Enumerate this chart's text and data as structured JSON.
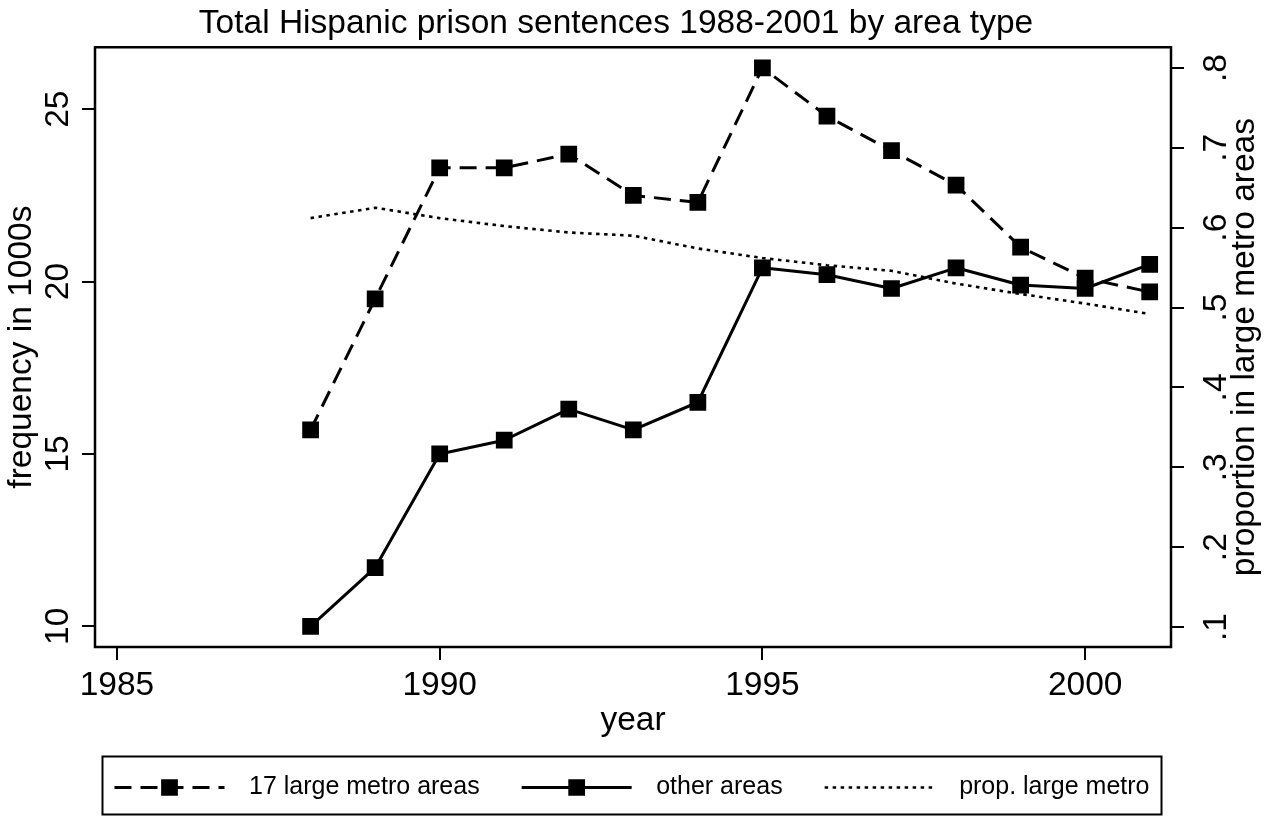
{
  "chart_data": {
    "type": "line",
    "title": "Total Hispanic prison sentences 1988-2001 by area type",
    "xlabel": "year",
    "ylabel": "frequency in 1000s",
    "y2label": "proportion in large metro areas",
    "x": [
      1988,
      1989,
      1990,
      1991,
      1992,
      1993,
      1994,
      1995,
      1996,
      1997,
      1998,
      1999,
      2000,
      2001
    ],
    "series": [
      {
        "name": "17 large metro areas",
        "color": "#000000",
        "line_style": "dashed",
        "marker": "square",
        "values": [
          15.7,
          19.5,
          23.3,
          23.3,
          23.7,
          22.5,
          22.3,
          26.2,
          24.8,
          23.8,
          22.8,
          21.0,
          20.1,
          19.7
        ]
      },
      {
        "name": "other areas",
        "color": "#000000",
        "line_style": "solid",
        "marker": "square",
        "values": [
          10.0,
          11.7,
          15.0,
          15.4,
          16.3,
          15.7,
          16.5,
          20.4,
          20.2,
          19.8,
          20.4,
          19.9,
          19.8,
          20.5
        ]
      },
      {
        "name": "prop. large metro",
        "color": "#000000",
        "line_style": "dotted",
        "marker": "none",
        "axis": "y2",
        "values": [
          0.612,
          0.625,
          0.612,
          0.602,
          0.594,
          0.59,
          0.574,
          0.562,
          0.553,
          0.546,
          0.53,
          0.517,
          0.505,
          0.492
        ]
      }
    ],
    "xlim": [
      1984.66,
      2001.33
    ],
    "xticks": [
      1985,
      1990,
      1995,
      2000
    ],
    "ylim": [
      9.4,
      26.8
    ],
    "yticks": [
      10,
      15,
      20,
      25
    ],
    "y2lim": [
      0.075,
      0.826
    ],
    "y2ticks": [
      {
        "value": 0.1,
        "label": ".1"
      },
      {
        "value": 0.2,
        "label": ".2"
      },
      {
        "value": 0.3,
        "label": ".3"
      },
      {
        "value": 0.4,
        "label": ".4"
      },
      {
        "value": 0.5,
        "label": ".5"
      },
      {
        "value": 0.6,
        "label": ".6"
      },
      {
        "value": 0.7,
        "label": ".7"
      },
      {
        "value": 0.8,
        "label": ".8"
      }
    ],
    "legend": "bottom"
  }
}
